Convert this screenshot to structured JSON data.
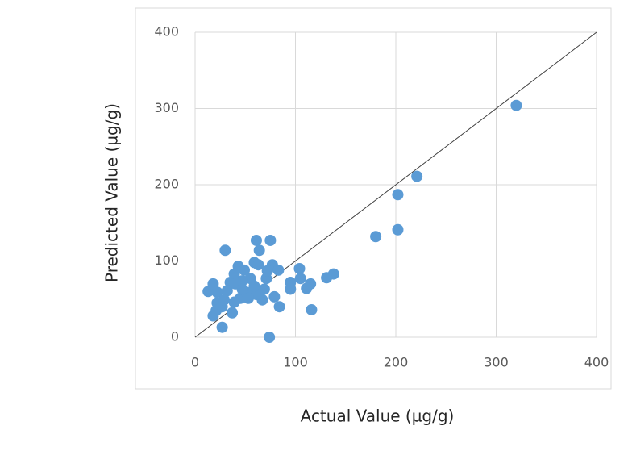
{
  "chart_data": {
    "type": "scatter",
    "x_label": "Actual Value (µg/g)",
    "y_label": "Predicted Value (µg/g)",
    "xlim": [
      0,
      400
    ],
    "ylim": [
      0,
      400
    ],
    "xticks": [
      0,
      100,
      200,
      300,
      400
    ],
    "yticks": [
      0,
      100,
      200,
      300,
      400
    ],
    "grid": true,
    "color": "#5b9bd5",
    "x": [
      320,
      221,
      202,
      180,
      202,
      138,
      131,
      116,
      115,
      111,
      104,
      105,
      95,
      95,
      84,
      79,
      74,
      75,
      61,
      64,
      30,
      59,
      63,
      77,
      83,
      71,
      67,
      61,
      45,
      37,
      27,
      18,
      13,
      18,
      22,
      35,
      39,
      43,
      49,
      22,
      21,
      27,
      39,
      51,
      55,
      47,
      40,
      32,
      29,
      47,
      59,
      69,
      72,
      53
    ],
    "y": [
      304,
      211,
      187,
      132,
      141,
      83,
      78,
      36,
      70,
      64,
      90,
      77,
      72,
      63,
      40,
      53,
      0,
      127,
      127,
      114,
      114,
      98,
      95,
      95,
      88,
      77,
      49,
      56,
      51,
      32,
      13,
      28,
      60,
      70,
      59,
      72,
      83,
      93,
      88,
      45,
      35,
      40,
      46,
      59,
      77,
      74,
      70,
      61,
      49,
      63,
      67,
      63,
      87,
      51
    ]
  }
}
